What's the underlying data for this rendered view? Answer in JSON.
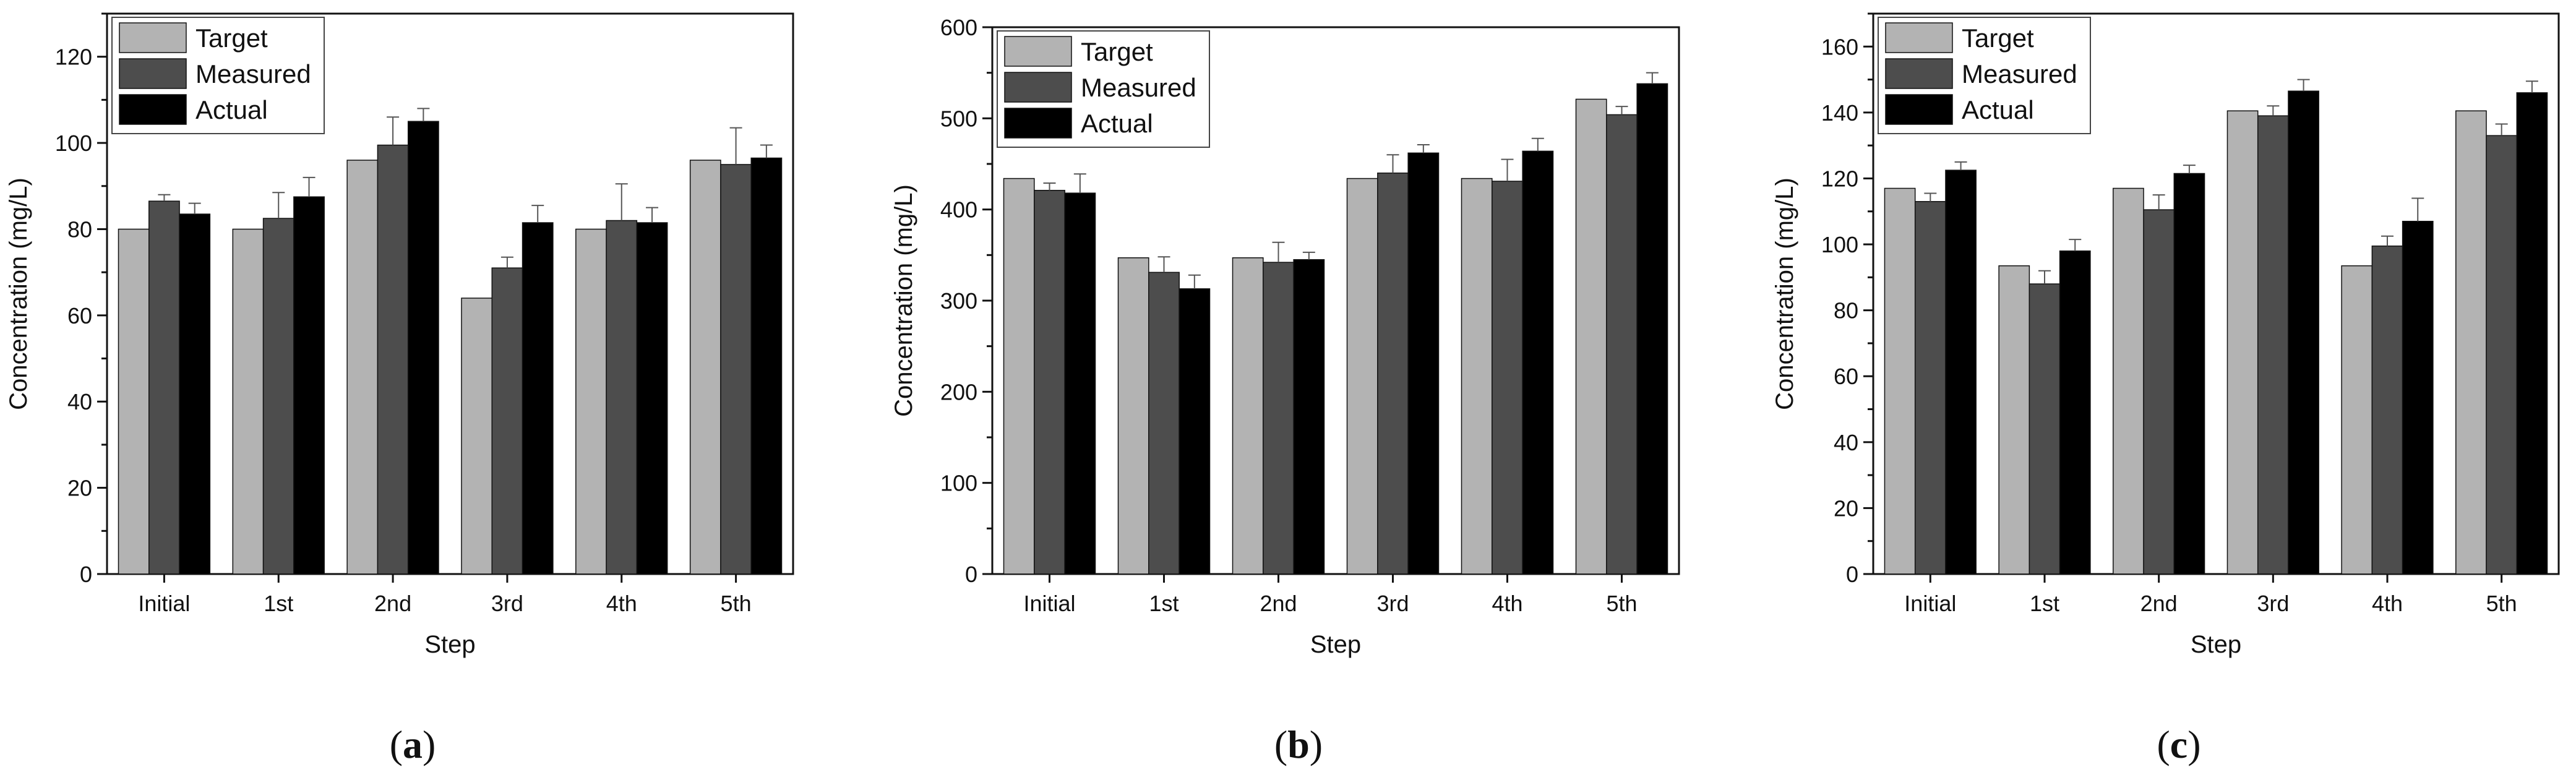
{
  "chart_data": [
    {
      "type": "bar",
      "panel_label": "a",
      "xlabel": "Step",
      "ylabel": "Concentration (mg/L)",
      "ylim": [
        0,
        130
      ],
      "yticks": [
        0,
        20,
        40,
        60,
        80,
        100,
        120
      ],
      "categories": [
        "Initial",
        "1st",
        "2nd",
        "3rd",
        "4th",
        "5th"
      ],
      "legend_position": "top-left",
      "series": [
        {
          "name": "Target",
          "color": "#b3b3b3",
          "values": [
            80,
            80,
            96,
            64,
            80,
            96
          ],
          "errors": [
            0,
            0,
            0,
            0,
            0,
            0
          ]
        },
        {
          "name": "Measured",
          "color": "#4d4d4d",
          "values": [
            86.5,
            82.5,
            99.5,
            71,
            82,
            95
          ],
          "errors": [
            1.5,
            6,
            6.5,
            2.5,
            8.5,
            8.5
          ]
        },
        {
          "name": "Actual",
          "color": "#000000",
          "values": [
            83.5,
            87.5,
            105,
            81.5,
            81.5,
            96.5
          ],
          "errors": [
            2.5,
            4.5,
            3,
            4,
            3.5,
            3
          ]
        }
      ]
    },
    {
      "type": "bar",
      "panel_label": "b",
      "xlabel": "Step",
      "ylabel": "Concentration (mg/L)",
      "ylim": [
        0,
        600
      ],
      "yticks": [
        0,
        100,
        200,
        300,
        400,
        500,
        600
      ],
      "categories": [
        "Initial",
        "1st",
        "2nd",
        "3rd",
        "4th",
        "5th"
      ],
      "legend_position": "top-left",
      "series": [
        {
          "name": "Target",
          "color": "#b3b3b3",
          "values": [
            434,
            347,
            347,
            434,
            434,
            521
          ],
          "errors": [
            0,
            0,
            0,
            0,
            0,
            0
          ]
        },
        {
          "name": "Measured",
          "color": "#4d4d4d",
          "values": [
            421,
            331,
            342,
            440,
            431,
            504
          ],
          "errors": [
            8,
            17,
            22,
            20,
            24,
            9
          ]
        },
        {
          "name": "Actual",
          "color": "#000000",
          "values": [
            418,
            313,
            345,
            462,
            464,
            538
          ],
          "errors": [
            21,
            15,
            8,
            9,
            14,
            12
          ]
        }
      ]
    },
    {
      "type": "bar",
      "panel_label": "c",
      "xlabel": "Step",
      "ylabel": "Concentration (mg/L)",
      "ylim": [
        0,
        170
      ],
      "yticks": [
        0,
        20,
        40,
        60,
        80,
        100,
        120,
        140,
        160
      ],
      "categories": [
        "Initial",
        "1st",
        "2nd",
        "3rd",
        "4th",
        "5th"
      ],
      "legend_position": "top-left",
      "series": [
        {
          "name": "Target",
          "color": "#b3b3b3",
          "values": [
            117,
            93.5,
            117,
            140.5,
            93.5,
            140.5
          ],
          "errors": [
            0,
            0,
            0,
            0,
            0,
            0
          ]
        },
        {
          "name": "Measured",
          "color": "#4d4d4d",
          "values": [
            113,
            88,
            110.5,
            139,
            99.5,
            133
          ],
          "errors": [
            2.5,
            4,
            4.5,
            3,
            3,
            3.5
          ]
        },
        {
          "name": "Actual",
          "color": "#000000",
          "values": [
            122.5,
            98,
            121.5,
            146.5,
            107,
            146
          ],
          "errors": [
            2.5,
            3.5,
            2.5,
            3.5,
            7,
            3.5
          ]
        }
      ]
    }
  ]
}
